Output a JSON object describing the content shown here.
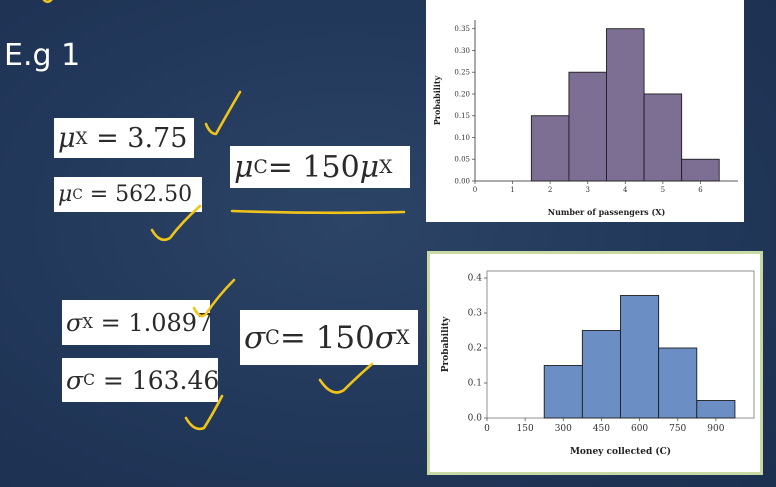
{
  "slide": {
    "title": "E.g 1"
  },
  "equations": {
    "mu_x": {
      "symbol": "μ",
      "sub": "X",
      "rhs": "= 3.75"
    },
    "mu_c": {
      "symbol": "μ",
      "sub": "C",
      "rhs": "= 562.50"
    },
    "mu_rel": {
      "symbol": "μ",
      "sub": "C",
      "mid": " = 150",
      "symbol2": "μ",
      "sub2": "X"
    },
    "sigma_x": {
      "symbol": "σ",
      "sub": "X",
      "rhs": "= 1.0897"
    },
    "sigma_c": {
      "symbol": "σ",
      "sub": "C",
      "rhs": "= 163.46"
    },
    "sigma_rel": {
      "symbol": "σ",
      "sub": "C",
      "mid": " = 150",
      "symbol2": "σ",
      "sub2": "X"
    }
  },
  "colors": {
    "background": "#22385a",
    "annotation_ink": "#f0c419",
    "chart1_bar": "#7d6f94",
    "chart2_bar": "#6b8fc4",
    "chart2_border": "#c8d9a4"
  },
  "chart_data": [
    {
      "type": "bar",
      "x": [
        2,
        3,
        4,
        5,
        6
      ],
      "values": [
        0.15,
        0.25,
        0.35,
        0.2,
        0.05
      ],
      "xticks": [
        "0",
        "1",
        "2",
        "3",
        "4",
        "5",
        "6"
      ],
      "yticks": [
        "0.00",
        "0.05",
        "0.10",
        "0.15",
        "0.20",
        "0.25",
        "0.30",
        "0.35"
      ],
      "xlabel": "Number of passengers (X)",
      "ylabel": "Probability",
      "xlim": [
        0,
        7
      ],
      "ylim": [
        0,
        0.37
      ],
      "grid": false
    },
    {
      "type": "bar",
      "x": [
        300,
        450,
        600,
        750,
        900
      ],
      "values": [
        0.15,
        0.25,
        0.35,
        0.2,
        0.05
      ],
      "xticks": [
        "0",
        "150",
        "300",
        "450",
        "600",
        "750",
        "900"
      ],
      "yticks": [
        "0.0",
        "0.1",
        "0.2",
        "0.3",
        "0.4"
      ],
      "xlabel": "Money collected (C)",
      "ylabel": "Probability",
      "xlim": [
        0,
        1050
      ],
      "ylim": [
        0,
        0.42
      ],
      "grid": false
    }
  ]
}
